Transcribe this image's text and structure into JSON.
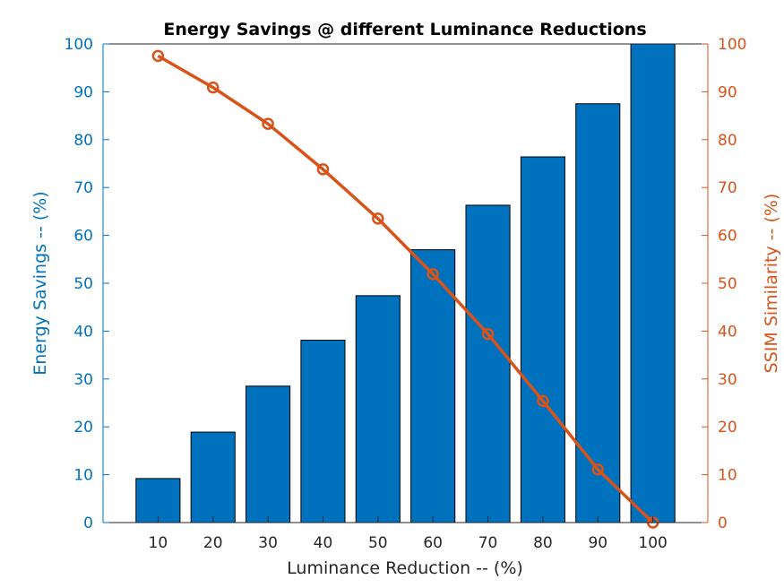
{
  "chart_data": {
    "type": "bar",
    "title": "Energy Savings @ different Luminance Reductions",
    "xlabel": "Luminance Reduction -- (%)",
    "ylabel_left": "Energy Savings -- (%)",
    "ylabel_right": "SSIM Similarity -- (%)",
    "categories": [
      10,
      20,
      30,
      40,
      50,
      60,
      70,
      80,
      90,
      100
    ],
    "xlim": [
      0,
      110
    ],
    "ylim_left": [
      0,
      100
    ],
    "ylim_right": [
      0,
      100
    ],
    "yticks": [
      0,
      10,
      20,
      30,
      40,
      50,
      60,
      70,
      80,
      90,
      100
    ],
    "grid": false,
    "series": [
      {
        "type": "bar",
        "axis": "left",
        "color": "#0072BD",
        "values": [
          9.2,
          18.9,
          28.5,
          38.1,
          47.4,
          57.0,
          66.3,
          76.4,
          87.5,
          100
        ]
      },
      {
        "type": "line",
        "axis": "right",
        "color": "#D95319",
        "marker": "circle",
        "values": [
          97.5,
          90.9,
          83.3,
          73.8,
          63.5,
          51.9,
          39.4,
          25.4,
          11.1,
          0
        ]
      }
    ]
  }
}
